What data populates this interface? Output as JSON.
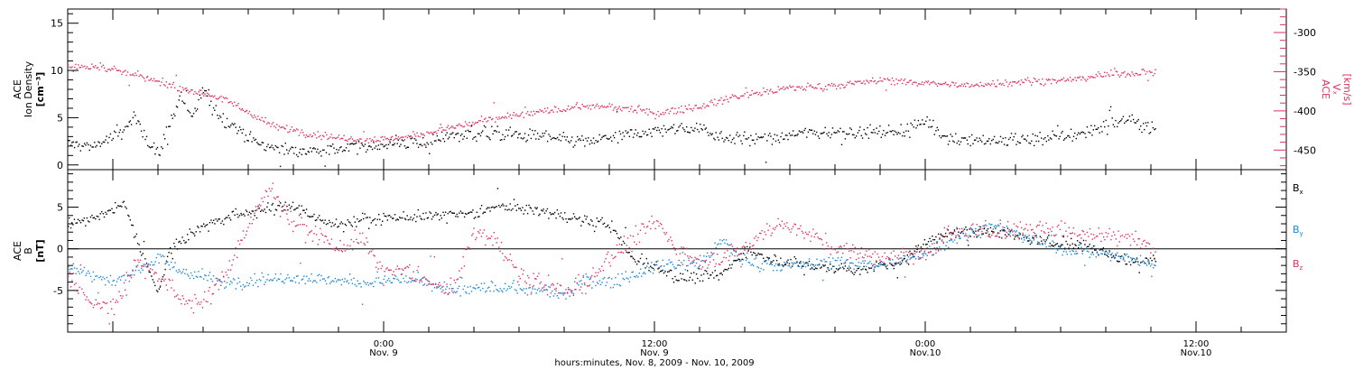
{
  "colors": {
    "black": "#000000",
    "pink": "#e0305c",
    "blue": "#1a86d6",
    "axis": "#000000"
  },
  "chart_data": [
    {
      "type": "scatter",
      "title": "",
      "x_axis": {
        "unit": "hours",
        "range": [
          -14,
          40
        ],
        "tick_labels": [
          {
            "x": 0,
            "line1": "0:00",
            "line2": "Nov. 9"
          },
          {
            "x": 12,
            "line1": "12:00",
            "line2": "Nov. 9"
          },
          {
            "x": 24,
            "line1": "0:00",
            "line2": "Nov.10"
          },
          {
            "x": 36,
            "line1": "12:00",
            "line2": "Nov.10"
          }
        ],
        "xlabel": "hours:minutes, Nov.  8, 2009 - Nov. 10, 2009"
      },
      "left_axis": {
        "label_lines": [
          "ACE",
          "Ion Density"
        ],
        "unit": "[cm⁻³]",
        "ylim": [
          -0.5,
          16.5
        ],
        "ticks": [
          0,
          5,
          10,
          15
        ]
      },
      "right_axis": {
        "label_lines": [
          "ACE",
          "Vₓ"
        ],
        "unit": "[km/s]",
        "ylim": [
          -475,
          -270
        ],
        "ticks": [
          -450,
          -400,
          -350,
          -300
        ]
      },
      "series": [
        {
          "key": "density",
          "axis": "left",
          "color": "#000000",
          "x_start": -14,
          "x_end": 34.2,
          "keyframes": [
            [
              -14,
              2.3
            ],
            [
              -13,
              2.0
            ],
            [
              -12,
              3.0
            ],
            [
              -11.5,
              3.7
            ],
            [
              -11,
              5.2
            ],
            [
              -10.5,
              2.8
            ],
            [
              -10,
              1.0
            ],
            [
              -9.5,
              4.5
            ],
            [
              -9,
              7.2
            ],
            [
              -8.5,
              5.0
            ],
            [
              -8,
              8.0
            ],
            [
              -7.2,
              5.0
            ],
            [
              -6.5,
              4.0
            ],
            [
              -5.5,
              2.2
            ],
            [
              -4,
              1.5
            ],
            [
              -2,
              1.7
            ],
            [
              0,
              2.2
            ],
            [
              2,
              2.5
            ],
            [
              3,
              3.3
            ],
            [
              5,
              3.4
            ],
            [
              7,
              3.0
            ],
            [
              9,
              2.5
            ],
            [
              11,
              3.3
            ],
            [
              12,
              3.7
            ],
            [
              14,
              4.0
            ],
            [
              15,
              3.0
            ],
            [
              17,
              2.8
            ],
            [
              19,
              3.6
            ],
            [
              21,
              3.5
            ],
            [
              23,
              3.7
            ],
            [
              24,
              4.8
            ],
            [
              25,
              2.8
            ],
            [
              28,
              2.6
            ],
            [
              31,
              3.4
            ],
            [
              33,
              5.0
            ],
            [
              34.2,
              3.8
            ]
          ],
          "noise": 0.7
        },
        {
          "key": "vx",
          "axis": "right",
          "color": "#e0305c",
          "x_start": -14,
          "x_end": 34.2,
          "keyframes": [
            [
              -14,
              -343
            ],
            [
              -12.5,
              -343
            ],
            [
              -11.5,
              -350
            ],
            [
              -10,
              -362
            ],
            [
              -9,
              -370
            ],
            [
              -7.5,
              -380
            ],
            [
              -6.5,
              -393
            ],
            [
              -5,
              -418
            ],
            [
              -3,
              -430
            ],
            [
              -1,
              -437
            ],
            [
              1,
              -433
            ],
            [
              3,
              -420
            ],
            [
              5,
              -409
            ],
            [
              7,
              -400
            ],
            [
              9,
              -393
            ],
            [
              11,
              -397
            ],
            [
              12,
              -403
            ],
            [
              14,
              -393
            ],
            [
              16,
              -378
            ],
            [
              18,
              -370
            ],
            [
              20,
              -367
            ],
            [
              22,
              -360
            ],
            [
              24,
              -364
            ],
            [
              26,
              -367
            ],
            [
              28,
              -362
            ],
            [
              30,
              -360
            ],
            [
              32,
              -353
            ],
            [
              34.2,
              -350
            ]
          ],
          "noise": 4.5
        }
      ]
    },
    {
      "type": "scatter",
      "title": "",
      "left_axis": {
        "label_lines": [
          "ACE",
          "B"
        ],
        "unit": "[nT]",
        "ylim": [
          -10,
          9.5
        ],
        "ticks": [
          -5,
          0,
          5
        ]
      },
      "zero_line": true,
      "legend": {
        "placement": "right",
        "entries": [
          {
            "base": "B",
            "sub": "x",
            "color": "#000000"
          },
          {
            "base": "B",
            "sub": "y",
            "color": "#1a86d6"
          },
          {
            "base": "B",
            "sub": "z",
            "color": "#e0305c"
          }
        ]
      },
      "series": [
        {
          "key": "Bx",
          "color": "#000000",
          "x_start": -14,
          "x_end": 34.2,
          "keyframes": [
            [
              -14,
              3.0
            ],
            [
              -12.5,
              4.0
            ],
            [
              -11.5,
              5.5
            ],
            [
              -11,
              1.5
            ],
            [
              -10,
              -5.0
            ],
            [
              -9.5,
              0.0
            ],
            [
              -8.5,
              2.0
            ],
            [
              -7.5,
              3.5
            ],
            [
              -6,
              4.5
            ],
            [
              -4,
              5.2
            ],
            [
              -2.5,
              3.0
            ],
            [
              0,
              3.8
            ],
            [
              2,
              4.0
            ],
            [
              4,
              4.2
            ],
            [
              5,
              5.2
            ],
            [
              6,
              5.0
            ],
            [
              8,
              4.0
            ],
            [
              10,
              3.0
            ],
            [
              11,
              -1.0
            ],
            [
              12,
              -2.0
            ],
            [
              13,
              -3.5
            ],
            [
              15,
              -3.0
            ],
            [
              16,
              0.0
            ],
            [
              17,
              -1.0
            ],
            [
              19,
              -2.0
            ],
            [
              21,
              -2.5
            ],
            [
              23,
              -1.5
            ],
            [
              24,
              0.8
            ],
            [
              25,
              2.0
            ],
            [
              27,
              2.3
            ],
            [
              29,
              1.0
            ],
            [
              31,
              0.5
            ],
            [
              32,
              -0.5
            ],
            [
              33,
              -1.5
            ],
            [
              34.2,
              -1.0
            ]
          ],
          "noise": 0.7
        },
        {
          "key": "By",
          "color": "#1a86d6",
          "x_start": -14,
          "x_end": 34.2,
          "keyframes": [
            [
              -14,
              -2.0
            ],
            [
              -13,
              -3.0
            ],
            [
              -12,
              -4.0
            ],
            [
              -11,
              -2.5
            ],
            [
              -10,
              -1.0
            ],
            [
              -9.5,
              -2.0
            ],
            [
              -8.5,
              -3.0
            ],
            [
              -7,
              -4.0
            ],
            [
              -5,
              -3.5
            ],
            [
              -3,
              -3.5
            ],
            [
              -1,
              -4.0
            ],
            [
              1,
              -3.5
            ],
            [
              3,
              -5.0
            ],
            [
              5,
              -4.5
            ],
            [
              7,
              -5.0
            ],
            [
              8,
              -5.5
            ],
            [
              9,
              -3.5
            ],
            [
              10,
              -4.0
            ],
            [
              11,
              -3.0
            ],
            [
              12,
              -2.0
            ],
            [
              14,
              -1.5
            ],
            [
              15,
              1.0
            ],
            [
              16,
              -1.5
            ],
            [
              18,
              -2.0
            ],
            [
              20,
              -1.5
            ],
            [
              22,
              -2.0
            ],
            [
              24,
              -0.5
            ],
            [
              25,
              1.0
            ],
            [
              27,
              3.0
            ],
            [
              28,
              2.0
            ],
            [
              30,
              0.0
            ],
            [
              32,
              -0.5
            ],
            [
              34.2,
              -2.0
            ]
          ],
          "noise": 0.75
        },
        {
          "key": "Bz",
          "color": "#e0305c",
          "x_start": -14,
          "x_end": 34.2,
          "keyframes": [
            [
              -14,
              -3.0
            ],
            [
              -13,
              -6.0
            ],
            [
              -12,
              -7.0
            ],
            [
              -11,
              -1.5
            ],
            [
              -10,
              -3.0
            ],
            [
              -9,
              -6.0
            ],
            [
              -8,
              -6.5
            ],
            [
              -7,
              -3.0
            ],
            [
              -6,
              3.0
            ],
            [
              -5,
              7.5
            ],
            [
              -4,
              3.0
            ],
            [
              -3,
              2.0
            ],
            [
              -2,
              0.0
            ],
            [
              -1,
              1.5
            ],
            [
              0,
              -3.0
            ],
            [
              1,
              -2.5
            ],
            [
              2,
              -4.0
            ],
            [
              3,
              -5.0
            ],
            [
              4,
              2.0
            ],
            [
              5,
              1.0
            ],
            [
              6,
              -3.0
            ],
            [
              7,
              -4.0
            ],
            [
              8,
              -5.0
            ],
            [
              9,
              -4.0
            ],
            [
              10,
              -1.0
            ],
            [
              11,
              1.0
            ],
            [
              12,
              3.5
            ],
            [
              13,
              0.0
            ],
            [
              14,
              -1.5
            ],
            [
              16,
              0.0
            ],
            [
              17,
              2.5
            ],
            [
              18,
              3.0
            ],
            [
              19,
              1.5
            ],
            [
              20,
              0.0
            ],
            [
              22,
              -1.0
            ],
            [
              24,
              -0.5
            ],
            [
              25,
              2.0
            ],
            [
              27,
              2.2
            ],
            [
              29,
              2.5
            ],
            [
              31,
              2.0
            ],
            [
              33,
              1.5
            ],
            [
              34.2,
              0.0
            ]
          ],
          "noise": 1.1
        }
      ]
    }
  ]
}
